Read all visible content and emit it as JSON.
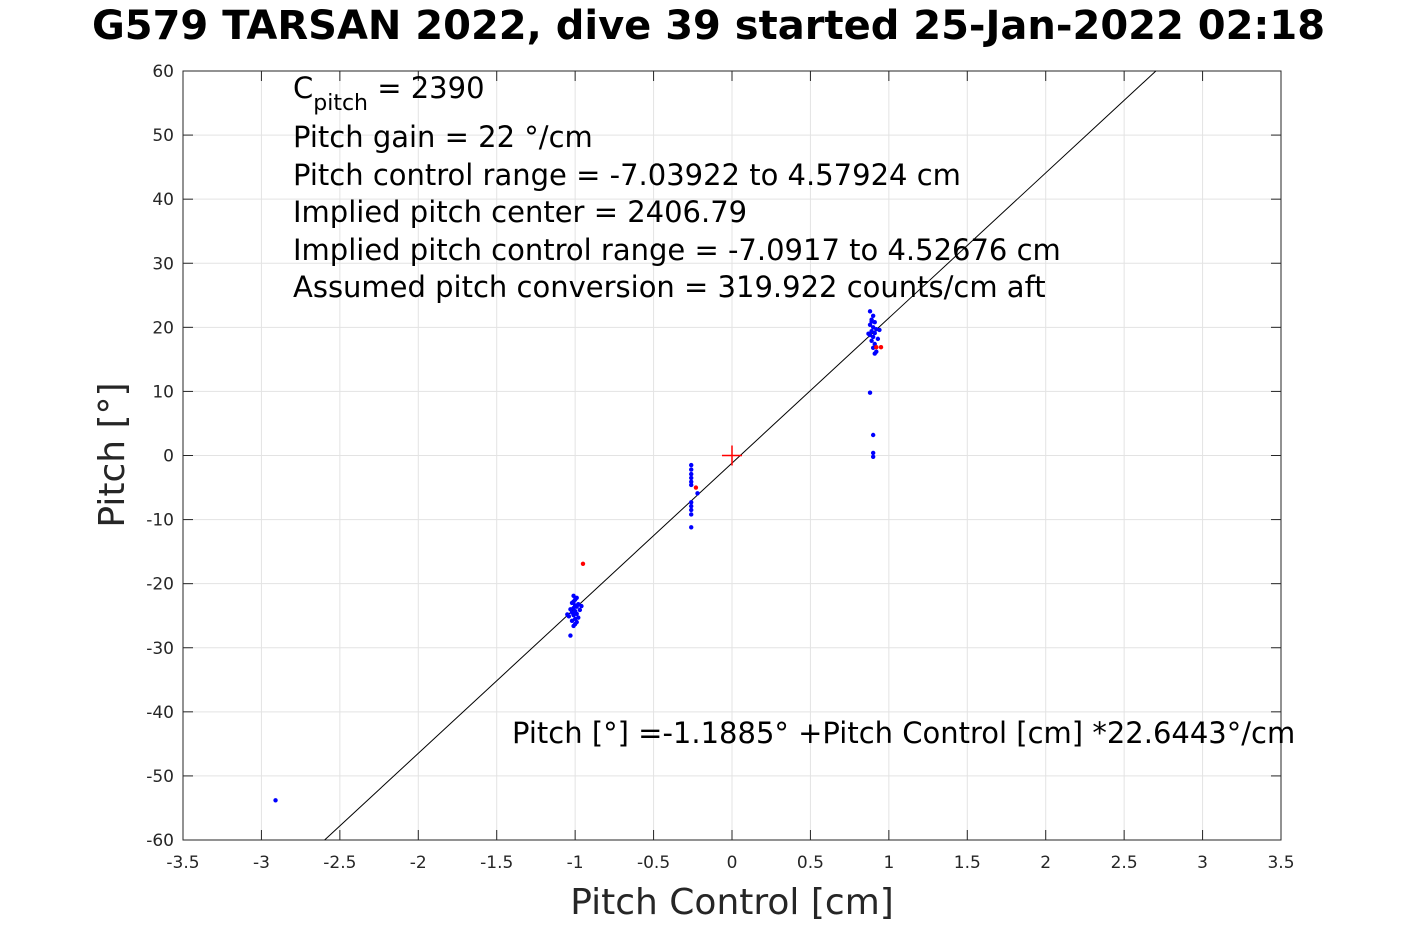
{
  "chart_data": {
    "type": "scatter",
    "title": "G579 TARSAN 2022, dive 39 started 25-Jan-2022 02:18",
    "xlabel": "Pitch Control [cm]",
    "ylabel": "Pitch [°]",
    "xlim": [
      -3.5,
      3.5
    ],
    "ylim": [
      -60,
      60
    ],
    "xticks": [
      -3.5,
      -3,
      -2.5,
      -2,
      -1.5,
      -1,
      -0.5,
      0,
      0.5,
      1,
      1.5,
      2,
      2.5,
      3,
      3.5
    ],
    "yticks": [
      -60,
      -50,
      -40,
      -30,
      -20,
      -10,
      0,
      10,
      20,
      30,
      40,
      50,
      60
    ],
    "grid": true,
    "annotations": {
      "c_pitch_main": "C",
      "c_pitch_sub": "pitch",
      "c_pitch_rest": " = 2390",
      "pitch_gain": "Pitch gain = 22 °/cm",
      "control_range": "Pitch control range = -7.03922 to 4.57924 cm",
      "implied_center": "Implied pitch center = 2406.79",
      "implied_range": "Implied pitch control range = -7.0917 to 4.52676 cm",
      "conversion": "Assumed pitch conversion = 319.922 counts/cm aft",
      "fit_equation": "Pitch [°] =-1.1885° +Pitch Control [cm] *22.6443°/cm"
    },
    "fit": {
      "intercept": -1.1885,
      "slope": 22.6443,
      "color": "#000000"
    },
    "center_marker": {
      "x": 0,
      "y": 0,
      "color": "#ff0000"
    },
    "series": [
      {
        "color": "#0000ff",
        "points": [
          [
            -2.91,
            -53.8
          ],
          [
            -1.03,
            -28.1
          ],
          [
            -1.01,
            -26.6
          ],
          [
            -1.0,
            -26.3
          ],
          [
            -0.99,
            -26.0
          ],
          [
            -1.02,
            -25.8
          ],
          [
            -1.0,
            -25.5
          ],
          [
            -0.98,
            -25.3
          ],
          [
            -1.04,
            -25.1
          ],
          [
            -1.01,
            -24.9
          ],
          [
            -0.99,
            -24.7
          ],
          [
            -1.02,
            -24.5
          ],
          [
            -1.0,
            -24.3
          ],
          [
            -0.97,
            -24.1
          ],
          [
            -1.03,
            -24.0
          ],
          [
            -1.01,
            -23.8
          ],
          [
            -0.99,
            -23.6
          ],
          [
            -1.0,
            -23.4
          ],
          [
            -0.98,
            -23.2
          ],
          [
            -1.02,
            -23.0
          ],
          [
            -1.01,
            -22.8
          ],
          [
            -1.0,
            -22.5
          ],
          [
            -0.99,
            -22.2
          ],
          [
            -1.01,
            -21.9
          ],
          [
            -1.05,
            -24.8
          ],
          [
            -0.96,
            -23.5
          ],
          [
            -0.26,
            -1.5
          ],
          [
            -0.26,
            -2.2
          ],
          [
            -0.26,
            -2.9
          ],
          [
            -0.26,
            -3.5
          ],
          [
            -0.26,
            -4.1
          ],
          [
            -0.26,
            -4.6
          ],
          [
            -0.26,
            -7.3
          ],
          [
            -0.26,
            -7.9
          ],
          [
            -0.26,
            -8.5
          ],
          [
            -0.26,
            -9.2
          ],
          [
            -0.26,
            -11.2
          ],
          [
            -0.22,
            -5.9
          ],
          [
            0.88,
            22.5
          ],
          [
            0.9,
            21.8
          ],
          [
            0.89,
            21.2
          ],
          [
            0.91,
            20.8
          ],
          [
            0.88,
            20.4
          ],
          [
            0.9,
            20.0
          ],
          [
            0.92,
            19.7
          ],
          [
            0.89,
            19.4
          ],
          [
            0.91,
            19.1
          ],
          [
            0.88,
            18.8
          ],
          [
            0.9,
            18.5
          ],
          [
            0.93,
            18.2
          ],
          [
            0.89,
            17.9
          ],
          [
            0.91,
            17.4
          ],
          [
            0.9,
            16.8
          ],
          [
            0.92,
            16.2
          ],
          [
            0.91,
            15.9
          ],
          [
            0.89,
            20.9
          ],
          [
            0.94,
            19.6
          ],
          [
            0.87,
            19.0
          ],
          [
            0.88,
            9.8
          ],
          [
            0.9,
            3.2
          ],
          [
            0.9,
            0.4
          ],
          [
            0.9,
            -0.2
          ]
        ]
      },
      {
        "color": "#ff0000",
        "points": [
          [
            -0.95,
            -16.9
          ],
          [
            -0.23,
            -5.0
          ],
          [
            0.92,
            16.9
          ],
          [
            0.95,
            16.9
          ]
        ]
      }
    ]
  }
}
